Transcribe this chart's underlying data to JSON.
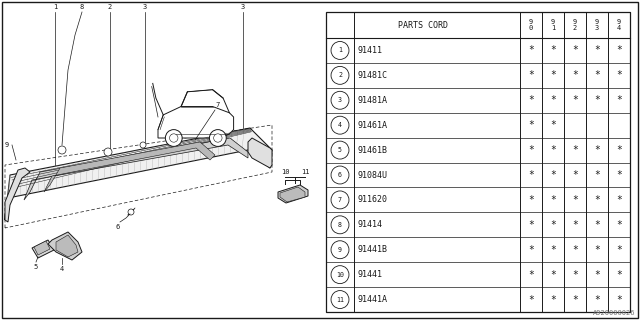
{
  "bg_color": "#ffffff",
  "lc": "#1a1a1a",
  "year_cols": [
    "9\n0",
    "9\n1",
    "9\n2",
    "9\n3",
    "9\n4"
  ],
  "rows": [
    {
      "num": "1",
      "code": "91411",
      "marks": [
        true,
        true,
        true,
        true,
        true
      ]
    },
    {
      "num": "2",
      "code": "91481C",
      "marks": [
        true,
        true,
        true,
        true,
        true
      ]
    },
    {
      "num": "3",
      "code": "91481A",
      "marks": [
        true,
        true,
        true,
        true,
        true
      ]
    },
    {
      "num": "4",
      "code": "91461A",
      "marks": [
        true,
        true,
        false,
        false,
        false
      ]
    },
    {
      "num": "5",
      "code": "91461B",
      "marks": [
        true,
        true,
        true,
        true,
        true
      ]
    },
    {
      "num": "6",
      "code": "91084U",
      "marks": [
        true,
        true,
        true,
        true,
        true
      ]
    },
    {
      "num": "7",
      "code": "911620",
      "marks": [
        true,
        true,
        true,
        true,
        true
      ]
    },
    {
      "num": "8",
      "code": "91414",
      "marks": [
        true,
        true,
        true,
        true,
        true
      ]
    },
    {
      "num": "9",
      "code": "91441B",
      "marks": [
        true,
        true,
        true,
        true,
        true
      ]
    },
    {
      "num": "10",
      "code": "91441",
      "marks": [
        true,
        true,
        true,
        true,
        true
      ]
    },
    {
      "num": "11",
      "code": "91441A",
      "marks": [
        true,
        true,
        true,
        true,
        true
      ]
    }
  ],
  "watermark": "A920000026",
  "fs_code": 6.0,
  "fs_yr": 5.0,
  "fs_num": 4.8,
  "fs_mark": 7.0,
  "fs_label": 5.0,
  "fs_wm": 5.0
}
